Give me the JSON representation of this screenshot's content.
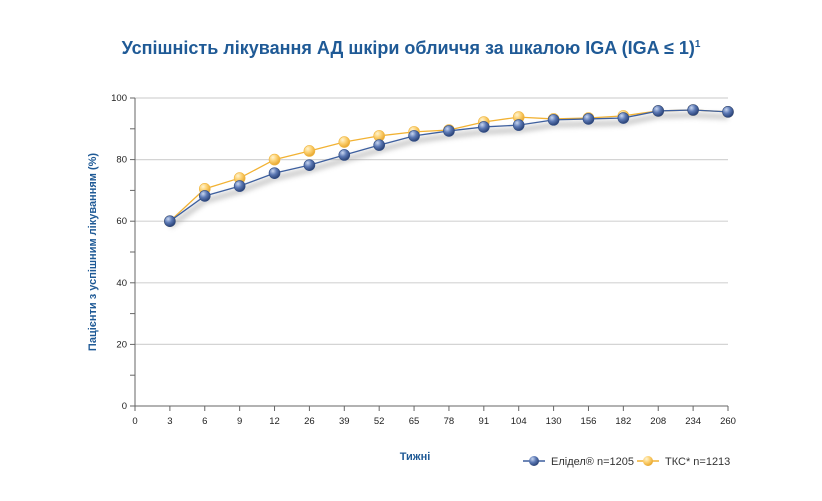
{
  "chart_data": {
    "type": "line",
    "title": "Успішність лікування АД шкіри обличчя за шкалою IGA (IGA ≤ 1)",
    "title_superscript": "1",
    "xlabel": "Тижні",
    "ylabel": "Пацієнти з успішним лікуванням (%)",
    "categories": [
      "0",
      "3",
      "6",
      "9",
      "12",
      "26",
      "39",
      "52",
      "65",
      "78",
      "91",
      "104",
      "130",
      "156",
      "182",
      "208",
      "234",
      "260"
    ],
    "ylim": [
      0,
      100
    ],
    "yticks": [
      0,
      20,
      40,
      60,
      80,
      100
    ],
    "grid": "horizontal",
    "legend_position": "bottom-right",
    "series": [
      {
        "name": "Елідел® n=1205",
        "color": "#3d5f9e",
        "values": [
          null,
          60,
          68.2,
          71.4,
          75.6,
          78.2,
          81.5,
          84.7,
          87.7,
          89.3,
          90.6,
          91.2,
          92.9,
          93.2,
          93.5,
          95.8,
          96.1,
          95.5
        ]
      },
      {
        "name": "ТКС* n=1213",
        "color": "#f2b233",
        "values": [
          null,
          60,
          70.5,
          74,
          80,
          82.8,
          85.7,
          87.7,
          89,
          89.6,
          92.2,
          93.8,
          93.2,
          93.5,
          94.2,
          95.8,
          96.1,
          95.5
        ]
      }
    ]
  }
}
